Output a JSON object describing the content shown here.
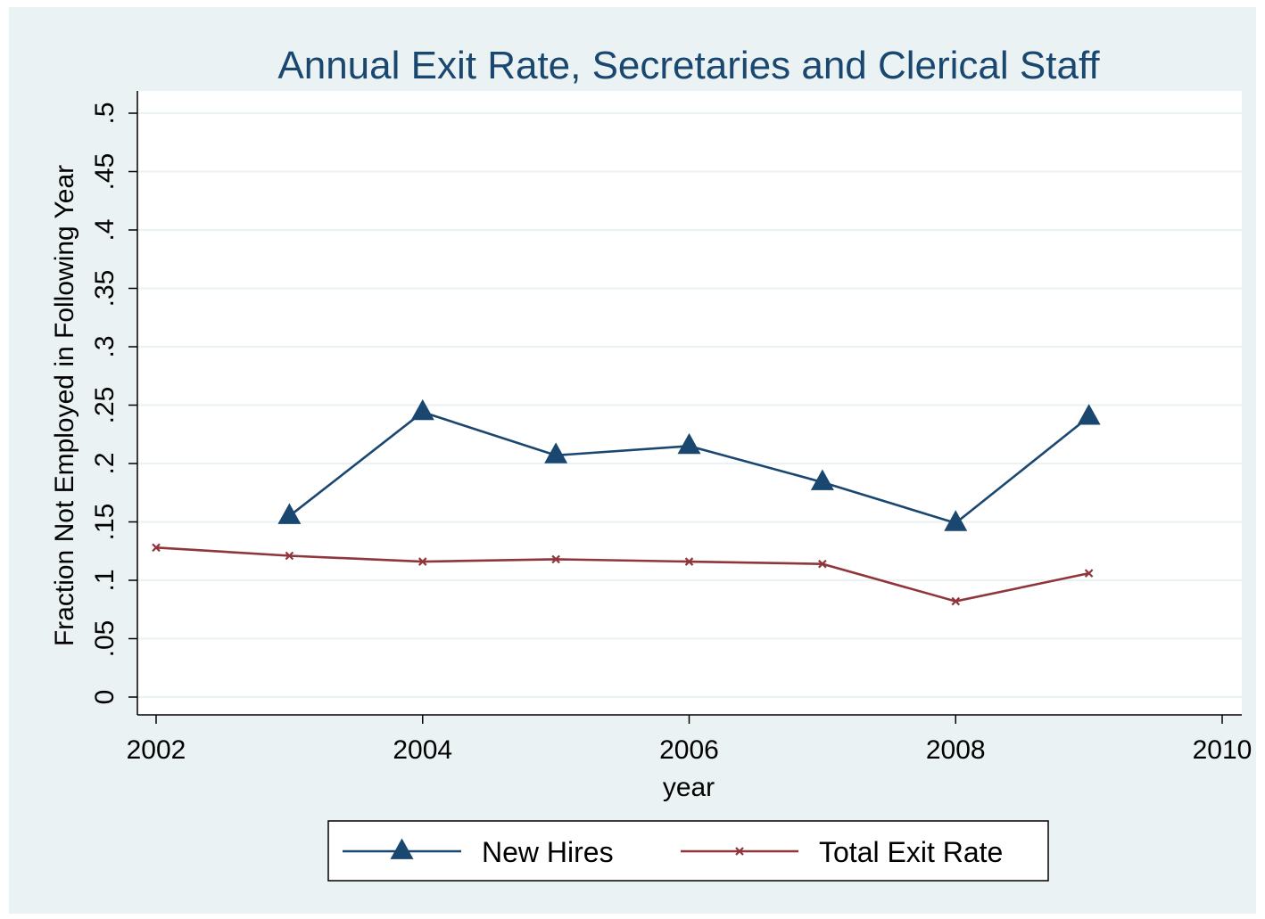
{
  "chart_data": {
    "type": "line",
    "title": "Annual Exit Rate, Secretaries and Clerical Staff",
    "xlabel": "year",
    "ylabel": "Fraction Not Employed in Following Year",
    "xlim": [
      2002,
      2010
    ],
    "ylim": [
      0,
      0.5
    ],
    "x_ticks": [
      2002,
      2004,
      2006,
      2008,
      2010
    ],
    "x_tick_labels": [
      "2002",
      "2004",
      "2006",
      "2008",
      "2010"
    ],
    "y_ticks": [
      0,
      0.05,
      0.1,
      0.15,
      0.2,
      0.25,
      0.3,
      0.35,
      0.4,
      0.45,
      0.5
    ],
    "y_tick_labels": [
      "0",
      ".05",
      ".1",
      ".15",
      ".2",
      ".25",
      ".3",
      ".35",
      ".4",
      ".45",
      ".5"
    ],
    "grid": true,
    "legend_position": "bottom",
    "series": [
      {
        "name": "New Hires",
        "color": "#1a476f",
        "marker": "triangle",
        "x": [
          2003,
          2004,
          2005,
          2006,
          2007,
          2008,
          2009
        ],
        "values": [
          0.155,
          0.244,
          0.207,
          0.215,
          0.184,
          0.149,
          0.24
        ]
      },
      {
        "name": "Total Exit Rate",
        "color": "#90353b",
        "marker": "x",
        "x": [
          2002,
          2003,
          2004,
          2005,
          2006,
          2007,
          2008,
          2009
        ],
        "values": [
          0.128,
          0.121,
          0.116,
          0.118,
          0.116,
          0.114,
          0.082,
          0.106
        ]
      }
    ]
  }
}
